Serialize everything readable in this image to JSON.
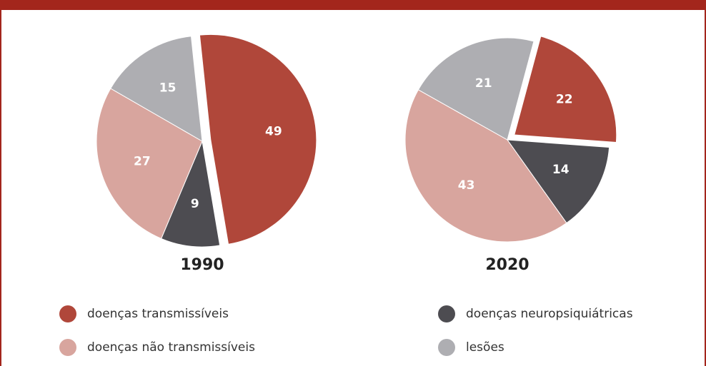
{
  "chart_data": [
    {
      "type": "pie",
      "title": "1990",
      "categories": [
        "doenças transmissíveis",
        "doenças neuropsiquiátricas",
        "doenças não transmissíveis",
        "lesões"
      ],
      "values": [
        49,
        9,
        27,
        15
      ],
      "colors": [
        "#b0473a",
        "#4d4c51",
        "#d8a59e",
        "#aeaeb2"
      ],
      "explode": [
        true,
        false,
        false,
        false
      ]
    },
    {
      "type": "pie",
      "title": "2020",
      "categories": [
        "doenças transmissíveis",
        "doenças neuropsiquiátricas",
        "doenças não transmissíveis",
        "lesões"
      ],
      "values": [
        22,
        14,
        43,
        21
      ],
      "colors": [
        "#b0473a",
        "#4d4c51",
        "#d8a59e",
        "#aeaeb2"
      ],
      "explode": [
        true,
        false,
        false,
        false
      ]
    }
  ]
}
